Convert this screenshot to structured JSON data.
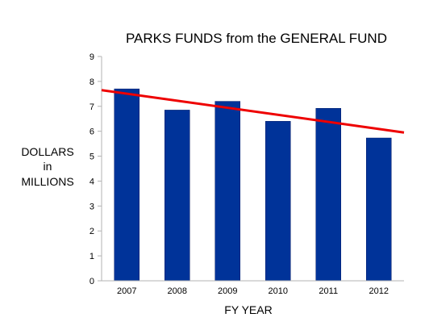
{
  "chart_data": {
    "type": "bar",
    "title": "PARKS FUNDS from the GENERAL FUND",
    "xlabel": "FY YEAR",
    "ylabel_lines": [
      "DOLLARS",
      "in",
      "MILLIONS"
    ],
    "categories": [
      "2007",
      "2008",
      "2009",
      "2010",
      "2011",
      "2012"
    ],
    "values": [
      7.7,
      6.85,
      7.2,
      6.4,
      6.92,
      5.73
    ],
    "ylim": [
      0,
      9
    ],
    "yticks": [
      0,
      1,
      2,
      3,
      4,
      5,
      6,
      7,
      8,
      9
    ],
    "grid": false,
    "legend": "none",
    "trendline": {
      "type": "linear",
      "start": 7.65,
      "end": 5.95
    },
    "colors": {
      "bar": "#003399",
      "trendline": "#ee0000",
      "axis": "#b3b3b3"
    }
  }
}
